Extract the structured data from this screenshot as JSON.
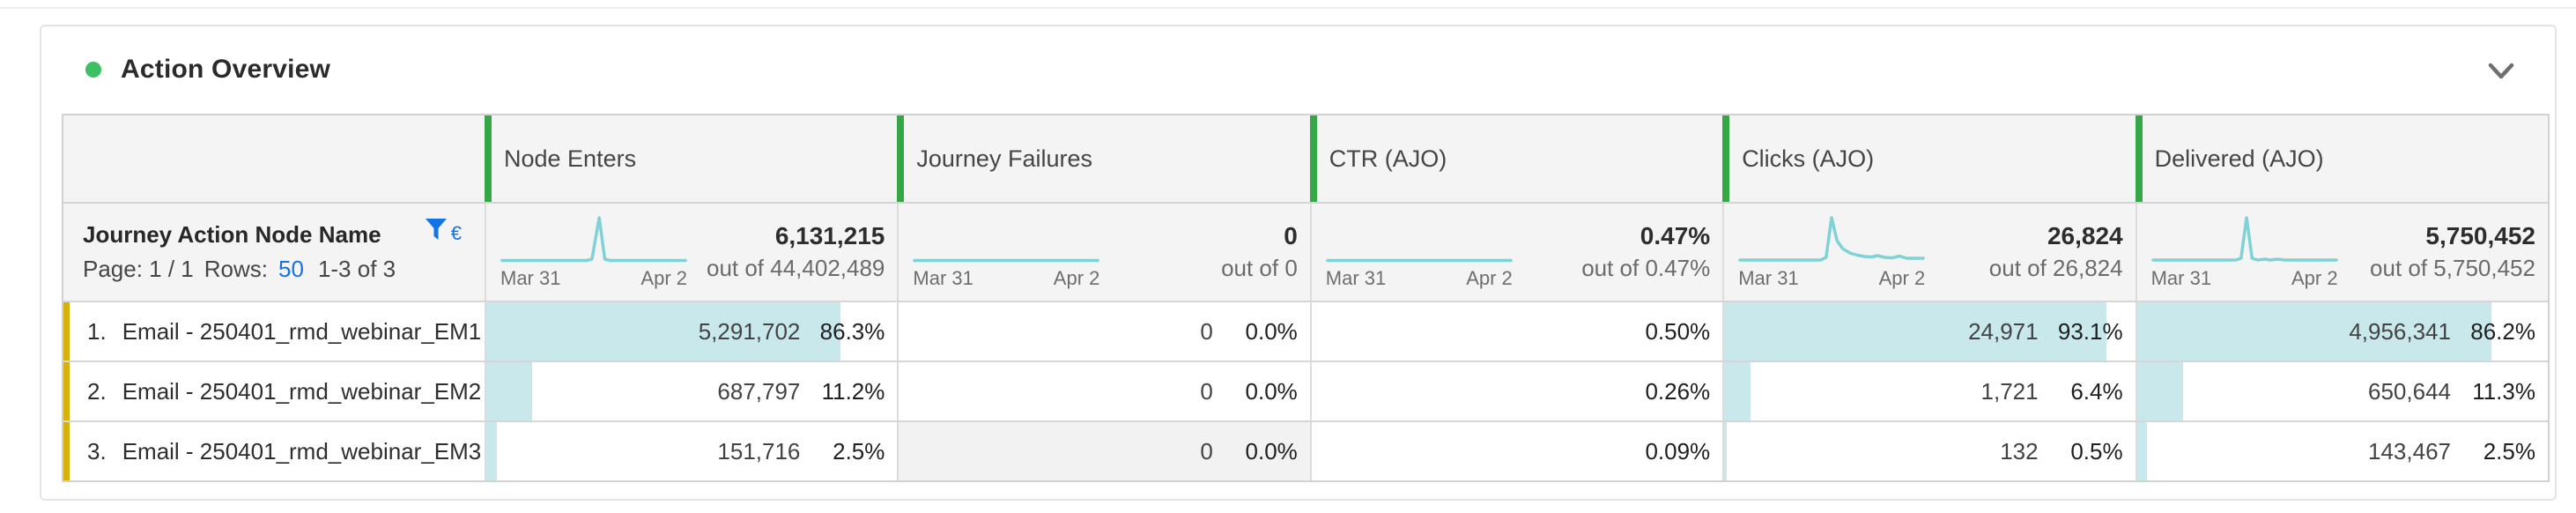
{
  "panel": {
    "title": "Action Overview"
  },
  "colors": {
    "status_dot": "#3dbf63",
    "column_accent_green": "#36a746",
    "row_accent_gold": "#d5b10b",
    "bar_fill_teal": "#c9e8ec",
    "sparkline_teal": "#7fd2d5",
    "link_blue": "#1473e6"
  },
  "table": {
    "dimension": {
      "title": "Journey Action Node Name",
      "page_label": "Page: 1 / 1",
      "rows_label": "Rows:",
      "rows_value": "50",
      "range": "1-3 of 3",
      "filter_badge": "€"
    },
    "columns": [
      {
        "label": "Node Enters",
        "total": "6,131,215",
        "out_of": "out of 44,402,489",
        "x_start": "Mar 31",
        "x_end": "Apr 2",
        "spark": [
          [
            0,
            3
          ],
          [
            46,
            3
          ],
          [
            49,
            6
          ],
          [
            53,
            100
          ],
          [
            56,
            6
          ],
          [
            59,
            3
          ],
          [
            100,
            3
          ]
        ]
      },
      {
        "label": "Journey Failures",
        "total": "0",
        "out_of": "out of 0",
        "x_start": "Mar 31",
        "x_end": "Apr 2",
        "spark": [
          [
            0,
            3
          ],
          [
            100,
            3
          ]
        ]
      },
      {
        "label": "CTR (AJO)",
        "total": "0.47%",
        "out_of": "out of 0.47%",
        "x_start": "Mar 31",
        "x_end": "Apr 2",
        "spark": [
          [
            0,
            3
          ],
          [
            100,
            3
          ]
        ]
      },
      {
        "label": "Clicks (AJO)",
        "total": "26,824",
        "out_of": "out of 26,824",
        "x_start": "Mar 31",
        "x_end": "Apr 2",
        "spark": [
          [
            0,
            4
          ],
          [
            44,
            4
          ],
          [
            47,
            10
          ],
          [
            50,
            100
          ],
          [
            53,
            48
          ],
          [
            56,
            30
          ],
          [
            60,
            20
          ],
          [
            64,
            15
          ],
          [
            68,
            12
          ],
          [
            72,
            11
          ],
          [
            75,
            14
          ],
          [
            79,
            10
          ],
          [
            83,
            9
          ],
          [
            87,
            13
          ],
          [
            91,
            8
          ],
          [
            100,
            8
          ]
        ]
      },
      {
        "label": "Delivered (AJO)",
        "total": "5,750,452",
        "out_of": "out of 5,750,452",
        "x_start": "Mar 31",
        "x_end": "Apr 2",
        "spark": [
          [
            0,
            4
          ],
          [
            45,
            4
          ],
          [
            48,
            8
          ],
          [
            51,
            100
          ],
          [
            54,
            8
          ],
          [
            57,
            4
          ],
          [
            61,
            6
          ],
          [
            64,
            4
          ],
          [
            68,
            6
          ],
          [
            72,
            4
          ],
          [
            100,
            4
          ]
        ]
      }
    ],
    "rows": [
      {
        "index": "1.",
        "name": "Email - 250401_rmd_webinar_EM1",
        "cells": [
          {
            "value": "5,291,702",
            "pct": "86.3%",
            "bar": 86.3
          },
          {
            "value": "0",
            "pct": "0.0%",
            "bar": 0
          },
          {
            "value": "",
            "pct": "0.50%",
            "bar": 0
          },
          {
            "value": "24,971",
            "pct": "93.1%",
            "bar": 93.1
          },
          {
            "value": "4,956,341",
            "pct": "86.2%",
            "bar": 86.2
          }
        ]
      },
      {
        "index": "2.",
        "name": "Email - 250401_rmd_webinar_EM2",
        "cells": [
          {
            "value": "687,797",
            "pct": "11.2%",
            "bar": 11.2
          },
          {
            "value": "0",
            "pct": "0.0%",
            "bar": 0
          },
          {
            "value": "",
            "pct": "0.26%",
            "bar": 0
          },
          {
            "value": "1,721",
            "pct": "6.4%",
            "bar": 6.4
          },
          {
            "value": "650,644",
            "pct": "11.3%",
            "bar": 11.3
          }
        ]
      },
      {
        "index": "3.",
        "name": "Email - 250401_rmd_webinar_EM3",
        "cells": [
          {
            "value": "151,716",
            "pct": "2.5%",
            "bar": 2.5
          },
          {
            "value": "0",
            "pct": "0.0%",
            "bar": 0,
            "bg": "#f2f2f2"
          },
          {
            "value": "",
            "pct": "0.09%",
            "bar": 0
          },
          {
            "value": "132",
            "pct": "0.5%",
            "bar": 0.5
          },
          {
            "value": "143,467",
            "pct": "2.5%",
            "bar": 2.5
          }
        ]
      }
    ]
  }
}
